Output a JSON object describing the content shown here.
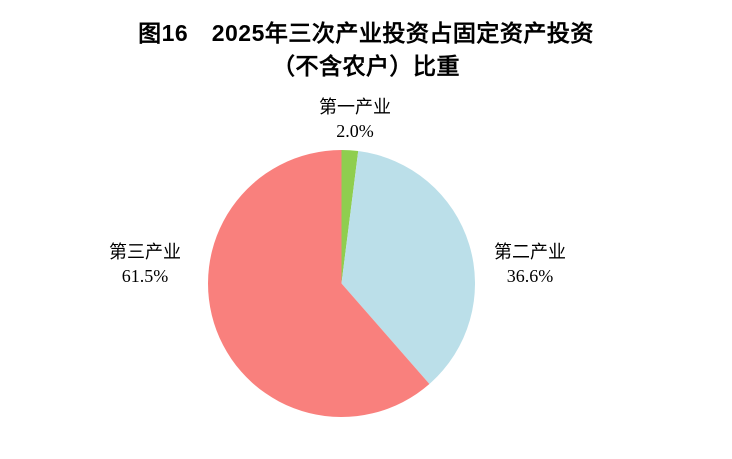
{
  "title": {
    "line1": "图16　2025年三次产业投资占固定资产投资",
    "line2": "（不含农户）比重"
  },
  "chart_data": {
    "type": "pie",
    "title": "图16 2025年三次产业投资占固定资产投资（不含农户）比重",
    "start_angle_deg": 0,
    "direction": "clockwise",
    "legend": "none",
    "labels_outside": true,
    "background": "#ffffff",
    "slices": [
      {
        "id": "primary-industry",
        "label": "第一产业",
        "value": 2.0,
        "display": "2.0%",
        "color": "#8FCE4F"
      },
      {
        "id": "secondary-industry",
        "label": "第二产业",
        "value": 36.6,
        "display": "36.6%",
        "color": "#BBDFE9"
      },
      {
        "id": "tertiary-industry",
        "label": "第三产业",
        "value": 61.5,
        "display": "61.5%",
        "color": "#F9807D"
      }
    ]
  }
}
